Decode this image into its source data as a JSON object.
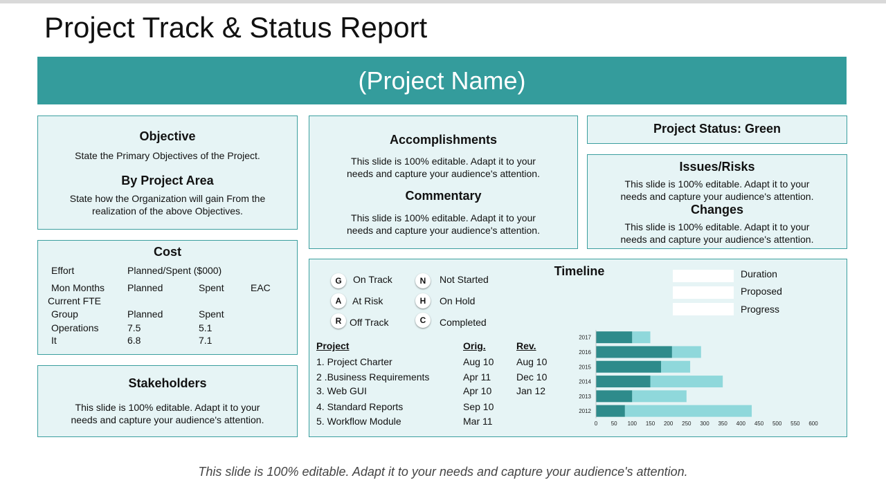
{
  "title": "Project Track & Status Report",
  "project_name": "(Project Name)",
  "objective": {
    "heading": "Objective",
    "text": "State the Primary Objectives of the Project.",
    "area_heading": "By Project Area",
    "area_text_1": "State how the Organization will gain From the",
    "area_text_2": "realization of the above Objectives."
  },
  "accomplishments": {
    "heading": "Accomplishments",
    "text_1": "This slide is 100% editable. Adapt it to your",
    "text_2": "needs and capture your audience's attention.",
    "commentary_heading": "Commentary",
    "commentary_1": "This slide is 100% editable. Adapt it to your",
    "commentary_2": "needs and capture your audience's attention."
  },
  "status": {
    "label": "Project Status: Green"
  },
  "issues": {
    "heading": "Issues/Risks",
    "text_1": "This slide is 100% editable. Adapt it to your",
    "text_2": "needs and capture your audience's attention.",
    "changes_heading": "Changes",
    "changes_1": "This slide is 100% editable. Adapt it to your",
    "changes_2": "needs and capture your audience's attention."
  },
  "cost": {
    "heading": "Cost",
    "effort": "Effort",
    "planned_spent": "Planned/Spent ($000)",
    "mon_months": "Mon Months",
    "planned": "Planned",
    "spent": "Spent",
    "eac": "EAC",
    "current_fte": "Current FTE",
    "group": "Group",
    "rows": [
      {
        "name": "Operations",
        "planned": "7.5",
        "spent": "5.1"
      },
      {
        "name": "It",
        "planned": "6.8",
        "spent": "7.1"
      }
    ]
  },
  "stakeholders": {
    "heading": "Stakeholders",
    "text_1": "This slide is 100% editable. Adapt it to your",
    "text_2": "needs and capture your audience's attention."
  },
  "timeline": {
    "heading": "Timeline",
    "status_legend": [
      {
        "code": "G",
        "label": "On Track"
      },
      {
        "code": "A",
        "label": "At Risk"
      },
      {
        "code": "R",
        "label": "Off Track"
      },
      {
        "code": "N",
        "label": "Not Started"
      },
      {
        "code": "H",
        "label": "On Hold"
      },
      {
        "code": "C",
        "label": "Completed"
      }
    ],
    "bar_legend": [
      "Duration",
      "Proposed",
      "Progress"
    ],
    "headers": {
      "project": "Project",
      "orig": "Orig.",
      "rev": "Rev."
    },
    "projects": [
      {
        "name": "1. Project Charter",
        "orig": "Aug 10",
        "rev": "Aug 10"
      },
      {
        "name": "2 .Business Requirements",
        "orig": "Apr 11",
        "rev": "Dec 10"
      },
      {
        "name": "3. Web GUI",
        "orig": "Apr 10",
        "rev": "Jan 12"
      },
      {
        "name": "4. Standard Reports",
        "orig": "Sep 10",
        "rev": ""
      },
      {
        "name": "5. Workflow Module",
        "orig": "Mar 11",
        "rev": ""
      }
    ]
  },
  "chart_data": {
    "type": "bar",
    "orientation": "horizontal",
    "stacked": true,
    "categories": [
      "2017",
      "2016",
      "2015",
      "2014",
      "2013",
      "2012"
    ],
    "series": [
      {
        "values": [
          100,
          210,
          180,
          150,
          100,
          80
        ],
        "color": "#2e8b8b"
      },
      {
        "values": [
          50,
          80,
          80,
          200,
          150,
          350
        ],
        "color": "#8fd8db"
      }
    ],
    "xlim": [
      0,
      600
    ],
    "xticks": [
      0,
      50,
      100,
      150,
      200,
      250,
      300,
      350,
      400,
      450,
      500,
      550,
      600
    ],
    "grid": false
  },
  "footer": "This slide is 100% editable. Adapt it to your needs and capture your audience's attention."
}
